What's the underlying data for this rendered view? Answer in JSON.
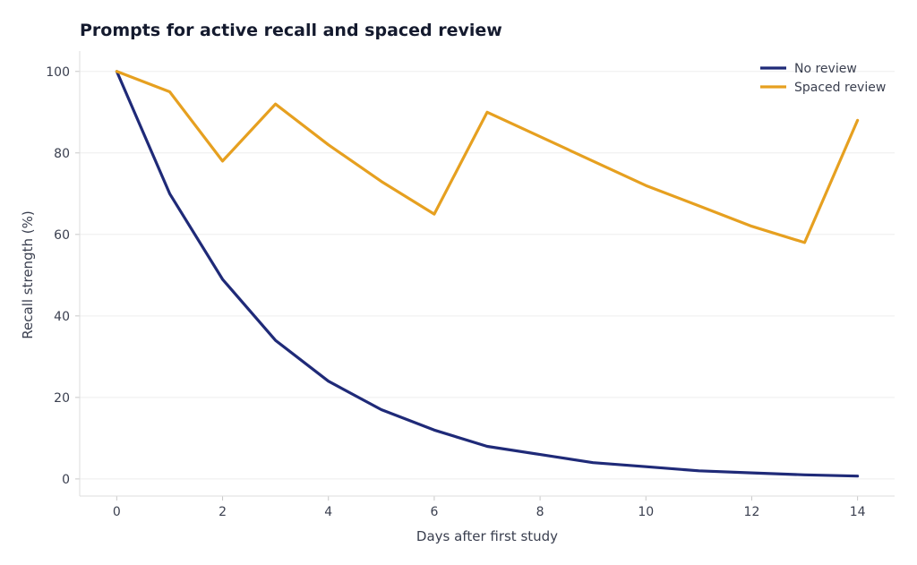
{
  "chart_data": {
    "type": "line",
    "title": "Prompts for active recall and spaced review",
    "xlabel": "Days after first study",
    "ylabel": "Recall strength (%)",
    "x": [
      0,
      1,
      2,
      3,
      4,
      5,
      6,
      7,
      8,
      9,
      10,
      11,
      12,
      13,
      14
    ],
    "xlim": [
      -0.7,
      14.7
    ],
    "ylim": [
      -4.2,
      105
    ],
    "xticks": [
      0,
      2,
      4,
      6,
      8,
      10,
      12,
      14
    ],
    "yticks": [
      0,
      20,
      40,
      60,
      80,
      100
    ],
    "grid": "horizontal",
    "legend_position": "top-right",
    "series": [
      {
        "name": "No review",
        "color": "#1f2a78",
        "values": [
          100,
          70,
          49,
          34,
          24,
          17,
          12,
          8,
          6,
          4,
          3,
          2,
          1.5,
          1,
          0.7
        ]
      },
      {
        "name": "Spaced review",
        "color": "#e6a020",
        "values": [
          100,
          95,
          78,
          92,
          82,
          73,
          65,
          90,
          84,
          78,
          72,
          67,
          62,
          58,
          88
        ]
      }
    ]
  }
}
